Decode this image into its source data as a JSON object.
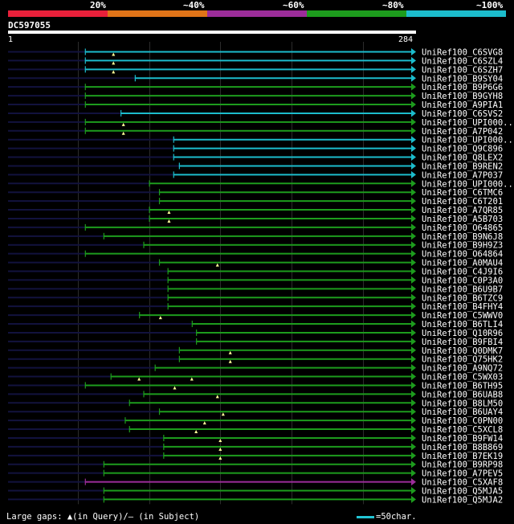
{
  "colors": {
    "bg": "#000000",
    "identity_scale": [
      "#e8203a",
      "#e07418",
      "#9c2d9a",
      "#1d9c1d",
      "#1cbccc"
    ],
    "query_bar": "#ffffff",
    "unaligned": "#12123e",
    "gridline": "#2c2c2c",
    "gap_marker": "#ffff99"
  },
  "identity_scale": {
    "labels": [
      "20%",
      "~40%",
      "~60%",
      "~80%",
      "~100%"
    ]
  },
  "query": {
    "id": "DC597055",
    "start_label": "1",
    "end_label": "284"
  },
  "legend": {
    "text": "Large gaps: ▲(in Query)/— (in Subject)",
    "scale_text": "=50char."
  },
  "chart_data": {
    "type": "alignment-overview",
    "title": "DC597055",
    "query_length": 284,
    "x_range": [
      1,
      284
    ],
    "identity_categories": [
      "20%",
      "~40%",
      "~60%",
      "~80%",
      "~100%"
    ],
    "hits": [
      {
        "label": "UniRef100_C6SVG8",
        "start": 55,
        "end": 284,
        "identity": "~100%",
        "gaps": [
          75
        ]
      },
      {
        "label": "UniRef100_C6SZL4",
        "start": 55,
        "end": 284,
        "identity": "~100%",
        "gaps": [
          75
        ]
      },
      {
        "label": "UniRef100_C6SZH7",
        "start": 55,
        "end": 284,
        "identity": "~100%",
        "gaps": [
          75
        ]
      },
      {
        "label": "UniRef100_B9SY04",
        "start": 90,
        "end": 284,
        "identity": "~100%",
        "gaps": []
      },
      {
        "label": "UniRef100_B9P6G6",
        "start": 55,
        "end": 284,
        "identity": "~80%",
        "gaps": []
      },
      {
        "label": "UniRef100_B9GYH8",
        "start": 55,
        "end": 284,
        "identity": "~80%",
        "gaps": []
      },
      {
        "label": "UniRef100_A9PIA1",
        "start": 55,
        "end": 284,
        "identity": "~80%",
        "gaps": []
      },
      {
        "label": "UniRef100_C6SVS2",
        "start": 80,
        "end": 284,
        "identity": "~100%",
        "gaps": []
      },
      {
        "label": "UniRef100_UPI000..",
        "start": 55,
        "end": 284,
        "identity": "~80%",
        "gaps": [
          82
        ]
      },
      {
        "label": "UniRef100_A7P042",
        "start": 55,
        "end": 284,
        "identity": "~80%",
        "gaps": [
          82
        ]
      },
      {
        "label": "UniRef100_UPI000..",
        "start": 117,
        "end": 284,
        "identity": "~100%",
        "gaps": []
      },
      {
        "label": "UniRef100_Q9C896",
        "start": 117,
        "end": 284,
        "identity": "~100%",
        "gaps": []
      },
      {
        "label": "UniRef100_Q8LEX2",
        "start": 117,
        "end": 284,
        "identity": "~100%",
        "gaps": []
      },
      {
        "label": "UniRef100_B9REN2",
        "start": 121,
        "end": 284,
        "identity": "~100%",
        "gaps": []
      },
      {
        "label": "UniRef100_A7P037",
        "start": 117,
        "end": 284,
        "identity": "~100%",
        "gaps": []
      },
      {
        "label": "UniRef100_UPI000..",
        "start": 100,
        "end": 284,
        "identity": "~80%",
        "gaps": []
      },
      {
        "label": "UniRef100_C6TMC6",
        "start": 107,
        "end": 284,
        "identity": "~80%",
        "gaps": []
      },
      {
        "label": "UniRef100_C6T201",
        "start": 107,
        "end": 284,
        "identity": "~80%",
        "gaps": []
      },
      {
        "label": "UniRef100_A7QR85",
        "start": 100,
        "end": 284,
        "identity": "~80%",
        "gaps": [
          114
        ]
      },
      {
        "label": "UniRef100_A5B703",
        "start": 100,
        "end": 284,
        "identity": "~80%",
        "gaps": [
          114
        ]
      },
      {
        "label": "UniRef100_O64865",
        "start": 55,
        "end": 284,
        "identity": "~80%",
        "gaps": []
      },
      {
        "label": "UniRef100_B9N6J8",
        "start": 68,
        "end": 284,
        "identity": "~80%",
        "gaps": []
      },
      {
        "label": "UniRef100_B9H9Z3",
        "start": 96,
        "end": 284,
        "identity": "~80%",
        "gaps": []
      },
      {
        "label": "UniRef100_O64864",
        "start": 55,
        "end": 284,
        "identity": "~80%",
        "gaps": []
      },
      {
        "label": "UniRef100_A0MAU4",
        "start": 107,
        "end": 284,
        "identity": "~80%",
        "gaps": [
          148
        ]
      },
      {
        "label": "UniRef100_C4J9I6",
        "start": 113,
        "end": 284,
        "identity": "~80%",
        "gaps": []
      },
      {
        "label": "UniRef100_C0P3A0",
        "start": 113,
        "end": 284,
        "identity": "~80%",
        "gaps": []
      },
      {
        "label": "UniRef100_B6U9B7",
        "start": 113,
        "end": 284,
        "identity": "~80%",
        "gaps": []
      },
      {
        "label": "UniRef100_B6TZC9",
        "start": 113,
        "end": 284,
        "identity": "~80%",
        "gaps": []
      },
      {
        "label": "UniRef100_B4FHY4",
        "start": 113,
        "end": 284,
        "identity": "~80%",
        "gaps": []
      },
      {
        "label": "UniRef100_C5WWV0",
        "start": 93,
        "end": 284,
        "identity": "~80%",
        "gaps": [
          108
        ]
      },
      {
        "label": "UniRef100_B6TLI4",
        "start": 130,
        "end": 284,
        "identity": "~80%",
        "gaps": []
      },
      {
        "label": "UniRef100_Q10R96",
        "start": 133,
        "end": 284,
        "identity": "~80%",
        "gaps": []
      },
      {
        "label": "UniRef100_B9FBI4",
        "start": 133,
        "end": 284,
        "identity": "~80%",
        "gaps": []
      },
      {
        "label": "UniRef100_Q0DMK7",
        "start": 121,
        "end": 284,
        "identity": "~80%",
        "gaps": [
          157
        ]
      },
      {
        "label": "UniRef100_Q75HK2",
        "start": 121,
        "end": 284,
        "identity": "~80%",
        "gaps": [
          157
        ]
      },
      {
        "label": "UniRef100_A9NQ72",
        "start": 104,
        "end": 284,
        "identity": "~80%",
        "gaps": []
      },
      {
        "label": "UniRef100_C5WX03",
        "start": 73,
        "end": 284,
        "identity": "~80%",
        "gaps": [
          93,
          130
        ]
      },
      {
        "label": "UniRef100_B6TH95",
        "start": 55,
        "end": 284,
        "identity": "~80%",
        "gaps": [
          118
        ]
      },
      {
        "label": "UniRef100_B6UAB8",
        "start": 96,
        "end": 284,
        "identity": "~80%",
        "gaps": [
          148
        ]
      },
      {
        "label": "UniRef100_B8LM50",
        "start": 86,
        "end": 284,
        "identity": "~80%",
        "gaps": []
      },
      {
        "label": "UniRef100_B6UAY4",
        "start": 107,
        "end": 284,
        "identity": "~80%",
        "gaps": [
          152
        ]
      },
      {
        "label": "UniRef100_C0PN00",
        "start": 83,
        "end": 284,
        "identity": "~80%",
        "gaps": [
          139
        ]
      },
      {
        "label": "UniRef100_C5XCL8",
        "start": 86,
        "end": 284,
        "identity": "~80%",
        "gaps": [
          133
        ]
      },
      {
        "label": "UniRef100_B9FW14",
        "start": 110,
        "end": 284,
        "identity": "~80%",
        "gaps": [
          150
        ]
      },
      {
        "label": "UniRef100_B8B869",
        "start": 110,
        "end": 284,
        "identity": "~80%",
        "gaps": [
          150
        ]
      },
      {
        "label": "UniRef100_B7EK19",
        "start": 110,
        "end": 284,
        "identity": "~80%",
        "gaps": [
          150
        ]
      },
      {
        "label": "UniRef100_B9RP98",
        "start": 68,
        "end": 284,
        "identity": "~80%",
        "gaps": []
      },
      {
        "label": "UniRef100_A7PEV5",
        "start": 68,
        "end": 284,
        "identity": "~80%",
        "gaps": []
      },
      {
        "label": "UniRef100_C5XAF8",
        "start": 55,
        "end": 284,
        "identity": "~60%",
        "gaps": []
      },
      {
        "label": "UniRef100_Q5MJA5",
        "start": 68,
        "end": 284,
        "identity": "~80%",
        "gaps": []
      },
      {
        "label": "UniRef100_Q5MJA2",
        "start": 68,
        "end": 284,
        "identity": "~80%",
        "gaps": []
      }
    ]
  }
}
